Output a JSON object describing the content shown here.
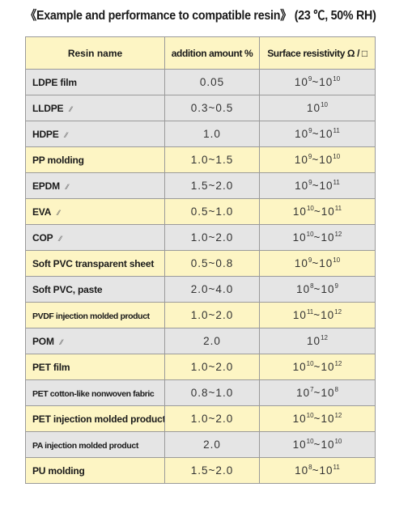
{
  "title": "《Example and performance to compatible resin》 (23 ℃, 50% RH)",
  "headers": {
    "resin": "Resin name",
    "amount": "addition amount %",
    "resistivity": "Surface resistivity Ω / □"
  },
  "rows": [
    {
      "name": "LDPE film",
      "amount": "0.05",
      "base1": "10",
      "exp1": "9",
      "sep": "~",
      "base2": "10",
      "exp2": "10",
      "note": "",
      "shade": "gray"
    },
    {
      "name": "LLDPE",
      "amount": "0.3~0.5",
      "base1": "10",
      "exp1": "10",
      "sep": "",
      "base2": "",
      "exp2": "",
      "note": "⁄⁄",
      "shade": "gray"
    },
    {
      "name": "HDPE",
      "amount": "1.0",
      "base1": "10",
      "exp1": "9",
      "sep": "~",
      "base2": "10",
      "exp2": "11",
      "note": "⁄⁄",
      "shade": "gray"
    },
    {
      "name": "PP molding",
      "amount": "1.0~1.5",
      "base1": "10",
      "exp1": "9",
      "sep": "~",
      "base2": "10",
      "exp2": "10",
      "note": "",
      "shade": "yellow"
    },
    {
      "name": "EPDM",
      "amount": "1.5~2.0",
      "base1": "10",
      "exp1": "9",
      "sep": "~",
      "base2": "10",
      "exp2": "11",
      "note": "⁄⁄",
      "shade": "gray"
    },
    {
      "name": "EVA",
      "amount": "0.5~1.0",
      "base1": "10",
      "exp1": "10",
      "sep": "~",
      "base2": "10",
      "exp2": "11",
      "note": "⁄⁄",
      "shade": "yellow"
    },
    {
      "name": "COP",
      "amount": "1.0~2.0",
      "base1": "10",
      "exp1": "10",
      "sep": "~",
      "base2": "10",
      "exp2": "12",
      "note": "⁄⁄",
      "shade": "gray"
    },
    {
      "name": "Soft PVC transparent sheet",
      "amount": "0.5~0.8",
      "base1": "10",
      "exp1": "9",
      "sep": "~",
      "base2": "10",
      "exp2": "10",
      "note": "",
      "shade": "yellow"
    },
    {
      "name": "Soft PVC, paste",
      "amount": "2.0~4.0",
      "base1": "10",
      "exp1": "8",
      "sep": "~",
      "base2": "10",
      "exp2": "9",
      "note": "",
      "shade": "gray"
    },
    {
      "name": "PVDF injection molded product",
      "amount": "1.0~2.0",
      "base1": "10",
      "exp1": "11",
      "sep": "~",
      "base2": "10",
      "exp2": "12",
      "note": "",
      "shade": "yellow",
      "small": true
    },
    {
      "name": "POM",
      "amount": "2.0",
      "base1": "10",
      "exp1": "12",
      "sep": "",
      "base2": "",
      "exp2": "",
      "note": "⁄⁄",
      "shade": "gray"
    },
    {
      "name": "PET film",
      "amount": "1.0~2.0",
      "base1": "10",
      "exp1": "10",
      "sep": "~",
      "base2": "10",
      "exp2": "12",
      "note": "",
      "shade": "yellow"
    },
    {
      "name": "PET cotton-like nonwoven fabric",
      "amount": "0.8~1.0",
      "base1": "10",
      "exp1": "7",
      "sep": "~",
      "base2": "10",
      "exp2": "8",
      "note": "",
      "shade": "gray",
      "small": true
    },
    {
      "name": "PET injection molded product",
      "amount": "1.0~2.0",
      "base1": "10",
      "exp1": "10",
      "sep": "~",
      "base2": "10",
      "exp2": "12",
      "note": "",
      "shade": "yellow"
    },
    {
      "name": "PA injection molded product",
      "amount": "2.0",
      "base1": "10",
      "exp1": "10",
      "sep": "~",
      "base2": "10",
      "exp2": "10",
      "note": "",
      "shade": "gray",
      "small": true
    },
    {
      "name": "PU molding",
      "amount": "1.5~2.0",
      "base1": "10",
      "exp1": "8",
      "sep": "~",
      "base2": "10",
      "exp2": "11",
      "note": "",
      "shade": "yellow"
    }
  ]
}
